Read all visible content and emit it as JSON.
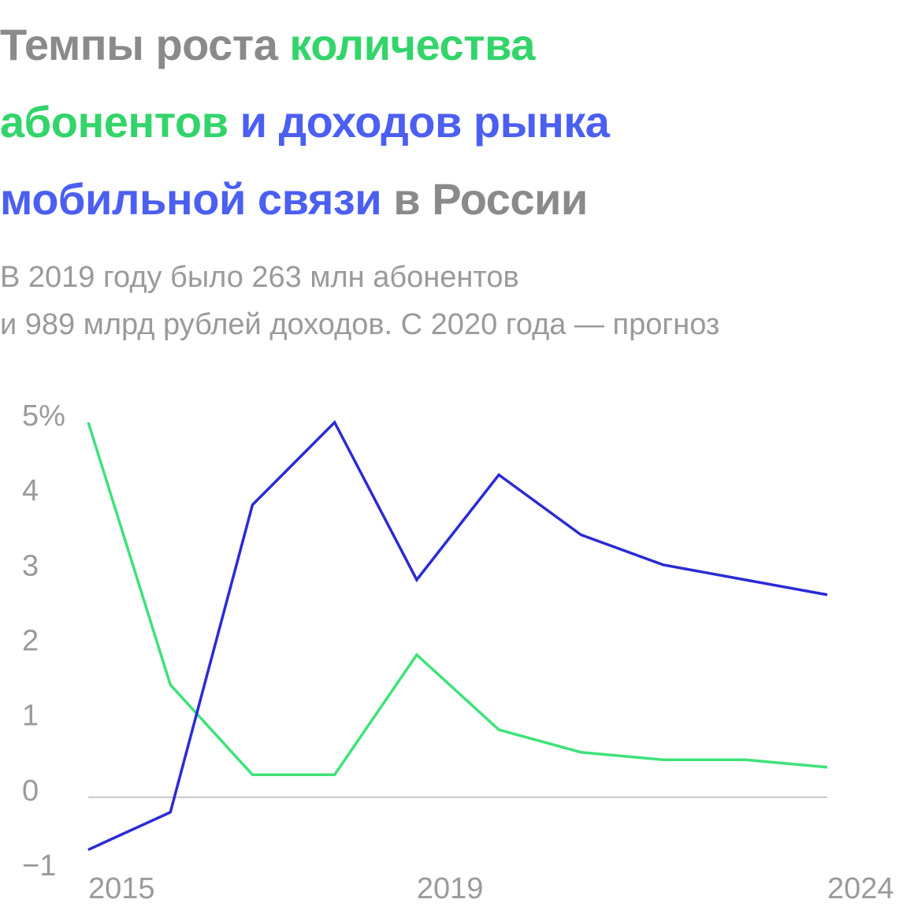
{
  "chart_data": {
    "type": "line",
    "title_parts": [
      {
        "text": "Темпы роста",
        "color": "#8a8a8a"
      },
      {
        "text": "количества абонентов",
        "color": "#33d46a"
      },
      {
        "text": "и доходов рынка мобильной связи",
        "color": "#4b5ff0"
      },
      {
        "text": "в России",
        "color": "#8a8a8a"
      }
    ],
    "subtitle_lines": [
      "В 2019 году было 263 млн абонентов",
      "и 989 млрд рублей доходов. С 2020 года — прогноз"
    ],
    "x": [
      2015,
      2016,
      2017,
      2018,
      2019,
      2020,
      2021,
      2022,
      2023,
      2024
    ],
    "xlim": [
      2015,
      2024
    ],
    "xticks": [
      2015,
      2019,
      2024
    ],
    "ylim": [
      -1,
      5
    ],
    "yticks": [
      {
        "value": -1,
        "label": "−1"
      },
      0,
      1,
      2,
      3,
      4,
      {
        "value": 5,
        "label": "5%"
      }
    ],
    "grid": false,
    "series": [
      {
        "color": "#3ee27a",
        "values": [
          5.0,
          1.5,
          0.3,
          0.3,
          1.9,
          0.9,
          0.6,
          0.5,
          0.5,
          0.4
        ]
      },
      {
        "color": "#2b2bd4",
        "values": [
          -0.7,
          -0.2,
          3.9,
          5.0,
          2.9,
          4.3,
          3.5,
          3.1,
          2.9,
          2.7
        ]
      }
    ]
  }
}
